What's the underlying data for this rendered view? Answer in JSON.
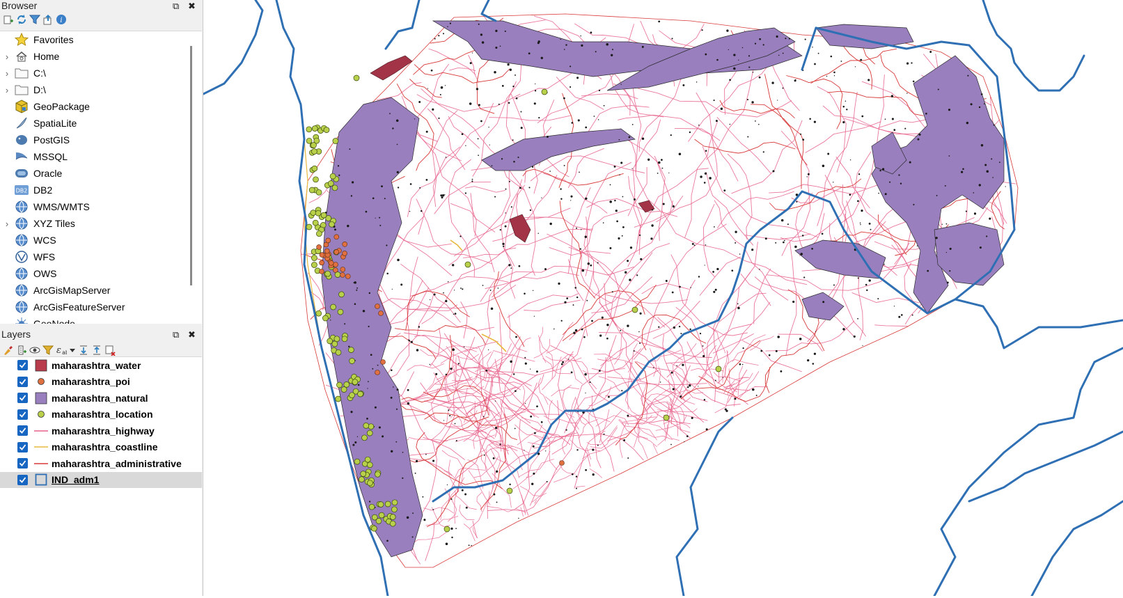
{
  "browser": {
    "title": "Browser",
    "restore_icon": "⧉",
    "close_icon": "✖",
    "toolbar_icons": [
      "add-icon",
      "refresh-icon",
      "filter-icon",
      "collapse-icon",
      "info-icon"
    ],
    "items": [
      {
        "label": "Favorites",
        "icon": "star-icon",
        "expandable": false
      },
      {
        "label": "Home",
        "icon": "home-icon",
        "expandable": true
      },
      {
        "label": "C:\\",
        "icon": "folder-icon",
        "expandable": true
      },
      {
        "label": "D:\\",
        "icon": "folder-icon",
        "expandable": true
      },
      {
        "label": "GeoPackage",
        "icon": "geopackage-icon",
        "expandable": false
      },
      {
        "label": "SpatiaLite",
        "icon": "spatialite-icon",
        "expandable": false
      },
      {
        "label": "PostGIS",
        "icon": "postgis-icon",
        "expandable": false
      },
      {
        "label": "MSSQL",
        "icon": "mssql-icon",
        "expandable": false
      },
      {
        "label": "Oracle",
        "icon": "oracle-icon",
        "expandable": false
      },
      {
        "label": "DB2",
        "icon": "db2-icon",
        "expandable": false
      },
      {
        "label": "WMS/WMTS",
        "icon": "globe-icon",
        "expandable": false
      },
      {
        "label": "XYZ Tiles",
        "icon": "globe-icon",
        "expandable": true
      },
      {
        "label": "WCS",
        "icon": "globe-icon",
        "expandable": false
      },
      {
        "label": "WFS",
        "icon": "wfs-icon",
        "expandable": false
      },
      {
        "label": "OWS",
        "icon": "globe-icon",
        "expandable": false
      },
      {
        "label": "ArcGisMapServer",
        "icon": "globe-icon",
        "expandable": false
      },
      {
        "label": "ArcGisFeatureServer",
        "icon": "globe-icon",
        "expandable": false
      },
      {
        "label": "GeoNode",
        "icon": "geonode-icon",
        "expandable": false
      }
    ]
  },
  "layers": {
    "title": "Layers",
    "restore_icon": "⧉",
    "close_icon": "✖",
    "toolbar_icons": [
      "style-icon",
      "add-group-icon",
      "visibility-icon",
      "filter-icon",
      "expression-icon",
      "dropdown-icon",
      "expand-icon",
      "collapse-icon",
      "remove-icon"
    ],
    "items": [
      {
        "label": "maharashtra_water",
        "symbol": "fill",
        "color": "#b83c4c",
        "checked": true
      },
      {
        "label": "maharashtra_poi",
        "symbol": "point",
        "color": "#e07040",
        "checked": true
      },
      {
        "label": "maharashtra_natural",
        "symbol": "fill",
        "color": "#9a7fbf",
        "checked": true
      },
      {
        "label": "maharashtra_location",
        "symbol": "point",
        "color": "#b8d04a",
        "checked": true
      },
      {
        "label": "maharashtra_highway",
        "symbol": "line",
        "color": "#e8608a",
        "checked": true
      },
      {
        "label": "maharashtra_coastline",
        "symbol": "line",
        "color": "#e8b840",
        "checked": true
      },
      {
        "label": "maharashtra_administrative",
        "symbol": "line",
        "color": "#d83838",
        "checked": true
      },
      {
        "label": "IND_adm1",
        "symbol": "outline",
        "color": "#2f6fb3",
        "checked": true,
        "selected": true
      }
    ]
  },
  "map": {
    "colors": {
      "boundary": "#2f6fb3",
      "natural": "#9a7fbf",
      "highway": "#e8608a",
      "administrative": "#d83838",
      "water": "#a33347",
      "location": "#b8d04a",
      "poi": "#e07040",
      "coastline": "#e8b840"
    }
  }
}
